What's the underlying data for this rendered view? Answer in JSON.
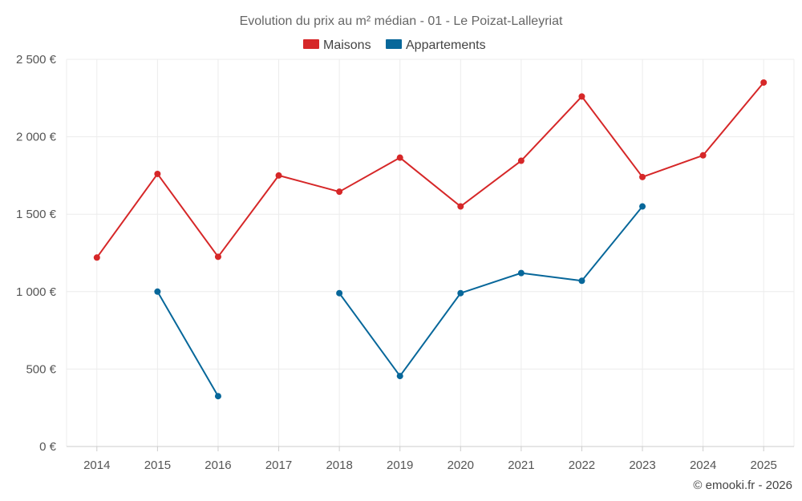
{
  "chart_data": {
    "type": "line",
    "title": "Evolution du prix au m² médian - 01 - Le Poizat-Lalleyriat",
    "categories": [
      "2014",
      "2015",
      "2016",
      "2017",
      "2018",
      "2019",
      "2020",
      "2021",
      "2022",
      "2023",
      "2024",
      "2025"
    ],
    "series": [
      {
        "name": "Maisons",
        "color": "#d62728",
        "values": [
          1220,
          1760,
          1225,
          1750,
          1645,
          1865,
          1550,
          1845,
          2260,
          1740,
          1880,
          2350
        ]
      },
      {
        "name": "Appartements",
        "color": "#07679a",
        "values": [
          null,
          1000,
          325,
          null,
          990,
          455,
          990,
          1120,
          1070,
          1550,
          null,
          null
        ]
      }
    ],
    "ylim": [
      0,
      2500
    ],
    "yticks": [
      0,
      500,
      1000,
      1500,
      2000,
      2500
    ],
    "ytick_labels": [
      "0 €",
      "500 €",
      "1 000 €",
      "1 500 €",
      "2 000 €",
      "2 500 €"
    ],
    "xlabel": "",
    "ylabel": "",
    "grid": true,
    "legend_position": "top-center"
  },
  "credit": "© emooki.fr - 2026"
}
